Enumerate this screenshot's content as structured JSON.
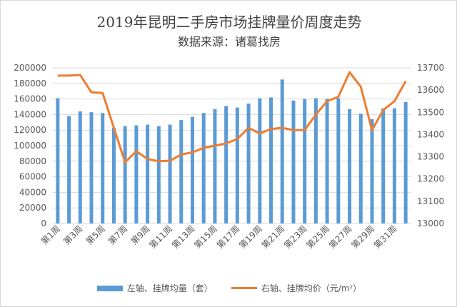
{
  "chart_data": {
    "type": "bar+line",
    "title": "2019年昆明二手房市场挂牌量价周度走势",
    "subtitle": "数据来源：诸葛找房",
    "categories": [
      "第1周",
      "第2周",
      "第3周",
      "第4周",
      "第5周",
      "第6周",
      "第7周",
      "第8周",
      "第9周",
      "第10周",
      "第11周",
      "第12周",
      "第13周",
      "第14周",
      "第15周",
      "第16周",
      "第17周",
      "第18周",
      "第19周",
      "第20周",
      "第21周",
      "第22周",
      "第23周",
      "第24周",
      "第25周",
      "第26周",
      "第27周",
      "第28周",
      "第29周",
      "第30周",
      "第31周",
      "第32周"
    ],
    "series": [
      {
        "name": "左轴、挂牌均量（套）",
        "type": "bar",
        "axis": "left",
        "color": "#5b9bd5",
        "values": [
          161000,
          138000,
          144000,
          143000,
          142000,
          123000,
          125000,
          126000,
          127000,
          125000,
          127000,
          133000,
          137000,
          142000,
          147000,
          151000,
          149000,
          154000,
          161000,
          162000,
          185000,
          158000,
          160000,
          161000,
          160000,
          161000,
          147000,
          141000,
          134000,
          148000,
          148000,
          156000
        ]
      },
      {
        "name": "右轴、挂牌均价（元/m²）",
        "type": "line",
        "axis": "right",
        "color": "#ed7d31",
        "values": [
          13665,
          13665,
          13668,
          13590,
          13587,
          13430,
          13275,
          13325,
          13290,
          13280,
          13282,
          13310,
          13320,
          13340,
          13350,
          13360,
          13380,
          13430,
          13405,
          13425,
          13430,
          13420,
          13420,
          13490,
          13550,
          13570,
          13680,
          13615,
          13420,
          13510,
          13550,
          13640
        ]
      }
    ],
    "ylim_left": [
      0,
      200000
    ],
    "ylim_right": [
      13000,
      13700
    ],
    "yticks_left": [
      "0",
      "20000",
      "40000",
      "60000",
      "80000",
      "100000",
      "120000",
      "140000",
      "160000",
      "180000",
      "200000"
    ],
    "yticks_right": [
      "13000",
      "13100",
      "13200",
      "13300",
      "13400",
      "13500",
      "13600",
      "13700"
    ],
    "xtick_labels": [
      "第1周",
      "第3周",
      "第5周",
      "第7周",
      "第9周",
      "第11周",
      "第13周",
      "第15周",
      "第17周",
      "第19周",
      "第21周",
      "第23周",
      "第25周",
      "第27周",
      "第29周",
      "第31周"
    ],
    "grid": true,
    "legend": "bottom"
  }
}
